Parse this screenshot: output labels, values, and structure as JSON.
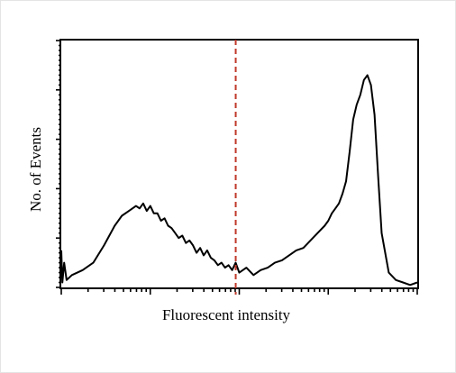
{
  "chart_data": {
    "type": "line",
    "title": "",
    "xlabel": "Fluorescent intensity",
    "ylabel": "No. of Events",
    "xscale": "log",
    "xlim": [
      0,
      1
    ],
    "ylim": [
      0,
      1
    ],
    "grid": false,
    "tick_labels": "none",
    "series": [
      {
        "name": "",
        "x": [
          0.0,
          0.003,
          0.008,
          0.015,
          0.03,
          0.06,
          0.09,
          0.12,
          0.15,
          0.17,
          0.19,
          0.21,
          0.22,
          0.23,
          0.24,
          0.25,
          0.26,
          0.27,
          0.28,
          0.29,
          0.3,
          0.31,
          0.32,
          0.33,
          0.34,
          0.35,
          0.36,
          0.37,
          0.38,
          0.39,
          0.4,
          0.41,
          0.42,
          0.43,
          0.44,
          0.45,
          0.46,
          0.47,
          0.48,
          0.49,
          0.5,
          0.52,
          0.54,
          0.56,
          0.58,
          0.6,
          0.62,
          0.64,
          0.66,
          0.68,
          0.7,
          0.72,
          0.74,
          0.75,
          0.76,
          0.77,
          0.78,
          0.79,
          0.8,
          0.81,
          0.82,
          0.83,
          0.84,
          0.85,
          0.86,
          0.87,
          0.88,
          0.89,
          0.9,
          0.92,
          0.94,
          0.96,
          0.98,
          1.0
        ],
        "y": [
          0.15,
          0.02,
          0.1,
          0.03,
          0.05,
          0.07,
          0.1,
          0.17,
          0.25,
          0.29,
          0.31,
          0.33,
          0.32,
          0.34,
          0.31,
          0.33,
          0.3,
          0.3,
          0.27,
          0.28,
          0.25,
          0.24,
          0.22,
          0.2,
          0.21,
          0.18,
          0.19,
          0.17,
          0.14,
          0.16,
          0.13,
          0.15,
          0.12,
          0.11,
          0.09,
          0.1,
          0.08,
          0.09,
          0.07,
          0.1,
          0.06,
          0.08,
          0.05,
          0.07,
          0.08,
          0.1,
          0.11,
          0.13,
          0.15,
          0.16,
          0.19,
          0.22,
          0.25,
          0.27,
          0.3,
          0.32,
          0.34,
          0.38,
          0.43,
          0.55,
          0.68,
          0.74,
          0.78,
          0.84,
          0.86,
          0.82,
          0.7,
          0.45,
          0.22,
          0.06,
          0.03,
          0.02,
          0.01,
          0.02
        ]
      }
    ],
    "markers": [
      {
        "type": "vertical-line",
        "x": 0.49,
        "color": "#c0392b",
        "style": "dashed"
      }
    ],
    "line_color": "#000000"
  }
}
